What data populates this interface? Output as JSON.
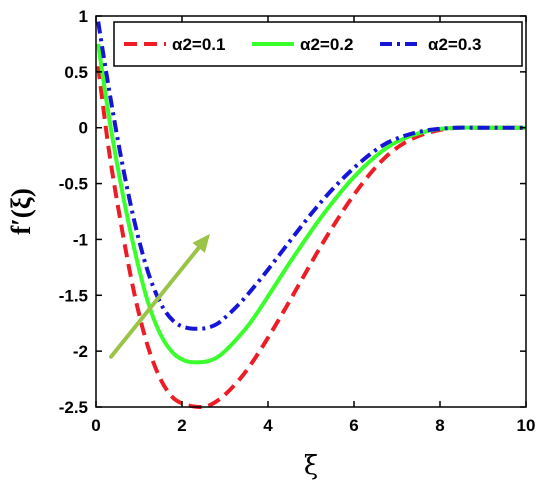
{
  "chart_data": {
    "type": "line",
    "xlabel": "ξ",
    "ylabel": "f′(ξ)",
    "xlim": [
      0,
      10
    ],
    "ylim": [
      -2.5,
      1
    ],
    "xticks": [
      "0",
      "2",
      "4",
      "6",
      "8",
      "10"
    ],
    "yticks": [
      "1",
      "0.5",
      "0",
      "-0.5",
      "-1",
      "-1.5",
      "-2",
      "-2.5"
    ],
    "grid": false,
    "legend_position": "top",
    "colors": {
      "red": "#ee1c25",
      "green": "#39ff2a",
      "blue": "#1515d8",
      "arrow": "#9ac447"
    },
    "series": [
      {
        "name": "α2=0.1",
        "color": "#ee1c25",
        "style": "dashed",
        "x": [
          0.05,
          0.3,
          0.6,
          0.9,
          1.2,
          1.5,
          1.8,
          2.1,
          2.4,
          2.6,
          2.8,
          3.0,
          3.3,
          3.6,
          4.0,
          4.4,
          4.8,
          5.2,
          5.6,
          6.0,
          6.4,
          6.8,
          7.2,
          7.6,
          8.0,
          8.4,
          8.8,
          9.2,
          9.6,
          10.0
        ],
        "y": [
          0.55,
          -0.2,
          -0.9,
          -1.5,
          -1.95,
          -2.25,
          -2.42,
          -2.48,
          -2.5,
          -2.49,
          -2.45,
          -2.39,
          -2.27,
          -2.12,
          -1.88,
          -1.62,
          -1.35,
          -1.08,
          -0.83,
          -0.6,
          -0.4,
          -0.24,
          -0.13,
          -0.06,
          -0.02,
          0.0,
          0.0,
          0.0,
          0.0,
          0.0
        ]
      },
      {
        "name": "α2=0.2",
        "color": "#39ff2a",
        "style": "solid",
        "x": [
          0.05,
          0.3,
          0.6,
          0.9,
          1.2,
          1.5,
          1.8,
          2.1,
          2.4,
          2.6,
          2.8,
          3.0,
          3.3,
          3.6,
          4.0,
          4.4,
          4.8,
          5.2,
          5.6,
          6.0,
          6.4,
          6.8,
          7.2,
          7.6,
          8.0,
          8.4,
          8.8,
          9.2,
          9.6,
          10.0
        ],
        "y": [
          0.75,
          0.1,
          -0.55,
          -1.1,
          -1.55,
          -1.85,
          -2.02,
          -2.09,
          -2.1,
          -2.09,
          -2.06,
          -2.0,
          -1.88,
          -1.74,
          -1.51,
          -1.27,
          -1.04,
          -0.82,
          -0.62,
          -0.44,
          -0.29,
          -0.17,
          -0.09,
          -0.04,
          -0.01,
          0.0,
          0.0,
          0.0,
          0.0,
          0.0
        ]
      },
      {
        "name": "α2=0.3",
        "color": "#1515d8",
        "style": "dashdot",
        "x": [
          0.05,
          0.3,
          0.6,
          0.9,
          1.2,
          1.5,
          1.8,
          2.1,
          2.4,
          2.6,
          2.8,
          3.0,
          3.3,
          3.6,
          4.0,
          4.4,
          4.8,
          5.2,
          5.6,
          6.0,
          6.4,
          6.8,
          7.2,
          7.6,
          8.0,
          8.4,
          8.8,
          9.2,
          9.6,
          10.0
        ],
        "y": [
          0.95,
          0.35,
          -0.3,
          -0.85,
          -1.28,
          -1.57,
          -1.73,
          -1.79,
          -1.8,
          -1.79,
          -1.76,
          -1.7,
          -1.59,
          -1.46,
          -1.27,
          -1.07,
          -0.87,
          -0.68,
          -0.51,
          -0.36,
          -0.23,
          -0.13,
          -0.07,
          -0.03,
          -0.01,
          0.0,
          0.0,
          0.0,
          0.0,
          0.0
        ]
      }
    ],
    "annotations": [
      {
        "type": "arrow",
        "from": [
          0.35,
          -2.05
        ],
        "to": [
          2.65,
          -0.95
        ],
        "color": "#9ac447"
      }
    ]
  }
}
